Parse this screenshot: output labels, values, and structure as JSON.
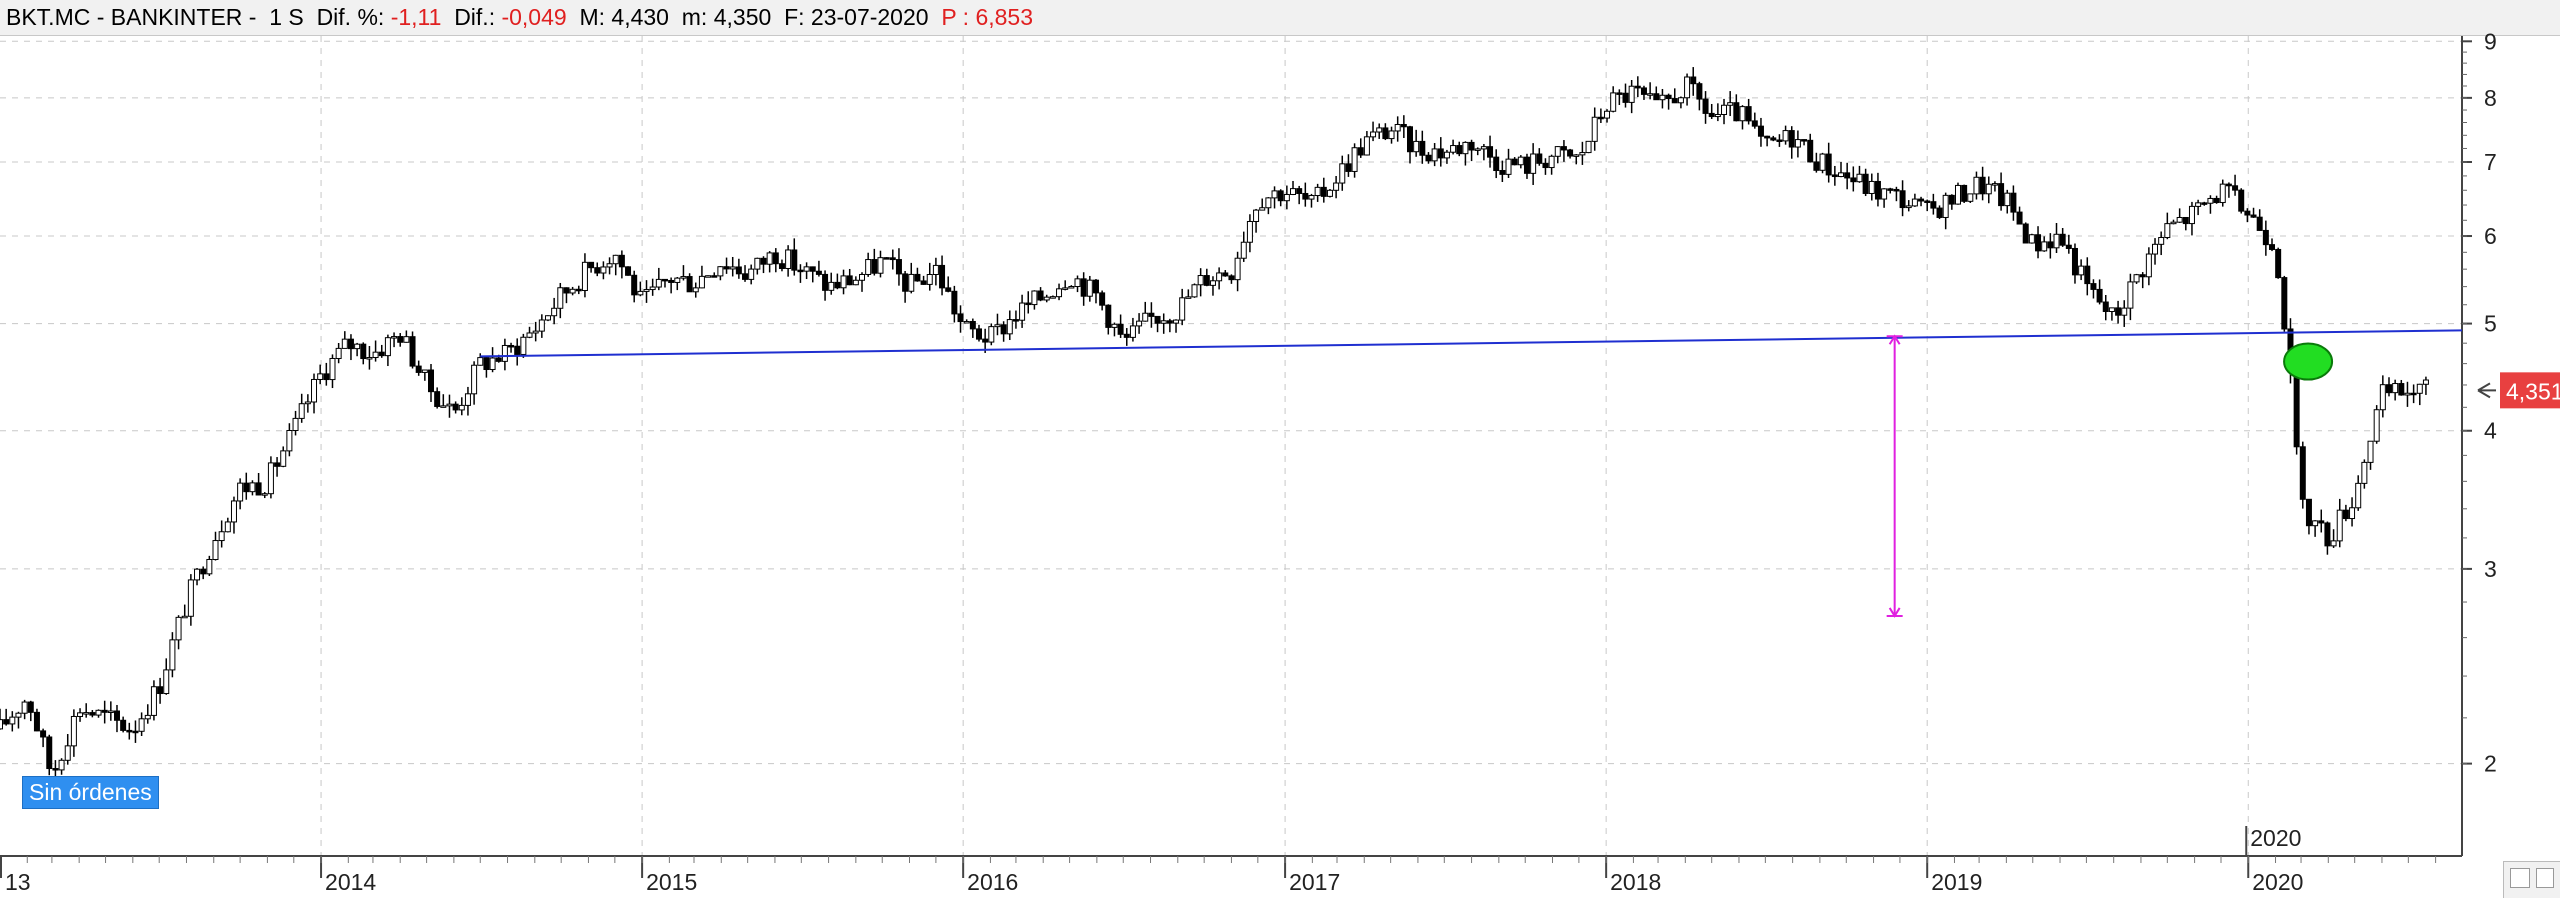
{
  "header": {
    "symbol": "BKT.MC - BANKINTER -",
    "period": "1 S",
    "pct_label": "Dif. %:",
    "pct_value": "-1,11",
    "diff_label": "Dif.:",
    "diff_value": "-0,049",
    "high_label": "M:",
    "high_value": "4,430",
    "low_label": "m:",
    "low_value": "4,350",
    "date_label": "F:",
    "date_value": "23-07-2020",
    "p_label": "P :",
    "p_value": "6,853"
  },
  "orders_badge": "Sin órdenes",
  "price_marker": "4,351",
  "corner_year": "2020",
  "colors": {
    "trendline": "#1f2fd0",
    "measure": "#e020e0",
    "marker": "#22dd22",
    "price_tag": "#e84040",
    "orders_badge": "#2f8ff0",
    "negative_text": "#e02020"
  },
  "chart_data": {
    "type": "candlestick",
    "scale": "log",
    "x_tick_labels": [
      "13",
      "2014",
      "2015",
      "2016",
      "2017",
      "2018",
      "2019",
      "2020"
    ],
    "y_tick_labels": [
      "9",
      "8",
      "7",
      "6",
      "5",
      "4",
      "3",
      "2"
    ],
    "y_ticks": [
      9,
      8,
      7,
      6,
      5,
      4,
      3,
      2
    ],
    "ylim": [
      1.65,
      9.1
    ],
    "xlim": [
      "2013-01-01",
      "2020-08-31"
    ],
    "price_path": [
      [
        "2013-01-01",
        2.15
      ],
      [
        "2013-02-01",
        2.3
      ],
      [
        "2013-03-01",
        1.95
      ],
      [
        "2013-04-01",
        2.25
      ],
      [
        "2013-05-01",
        2.2
      ],
      [
        "2013-06-01",
        2.15
      ],
      [
        "2013-07-01",
        2.35
      ],
      [
        "2013-08-01",
        2.8
      ],
      [
        "2013-09-01",
        3.2
      ],
      [
        "2013-10-01",
        3.55
      ],
      [
        "2013-11-01",
        3.6
      ],
      [
        "2013-12-01",
        4.0
      ],
      [
        "2014-01-01",
        4.5
      ],
      [
        "2014-02-01",
        4.8
      ],
      [
        "2014-03-01",
        4.7
      ],
      [
        "2014-04-01",
        4.9
      ],
      [
        "2014-05-01",
        4.4
      ],
      [
        "2014-06-01",
        4.15
      ],
      [
        "2014-07-01",
        4.6
      ],
      [
        "2014-08-01",
        4.7
      ],
      [
        "2014-09-01",
        4.95
      ],
      [
        "2014-10-01",
        5.3
      ],
      [
        "2014-11-01",
        5.6
      ],
      [
        "2014-12-01",
        5.8
      ],
      [
        "2015-01-01",
        5.2
      ],
      [
        "2015-02-01",
        5.5
      ],
      [
        "2015-03-01",
        5.45
      ],
      [
        "2015-04-01",
        5.7
      ],
      [
        "2015-05-01",
        5.55
      ],
      [
        "2015-06-01",
        5.8
      ],
      [
        "2015-07-01",
        5.6
      ],
      [
        "2015-08-01",
        5.4
      ],
      [
        "2015-09-01",
        5.5
      ],
      [
        "2015-10-01",
        5.7
      ],
      [
        "2015-11-01",
        5.4
      ],
      [
        "2015-12-01",
        5.6
      ],
      [
        "2016-01-01",
        4.95
      ],
      [
        "2016-02-01",
        4.85
      ],
      [
        "2016-03-01",
        5.1
      ],
      [
        "2016-04-01",
        5.3
      ],
      [
        "2016-05-01",
        5.55
      ],
      [
        "2016-06-01",
        5.3
      ],
      [
        "2016-07-01",
        4.8
      ],
      [
        "2016-08-01",
        5.05
      ],
      [
        "2016-09-01",
        5.15
      ],
      [
        "2016-10-01",
        5.5
      ],
      [
        "2016-11-01",
        5.6
      ],
      [
        "2016-12-01",
        6.5
      ],
      [
        "2017-01-01",
        6.6
      ],
      [
        "2017-02-01",
        6.4
      ],
      [
        "2017-03-01",
        6.8
      ],
      [
        "2017-04-01",
        7.3
      ],
      [
        "2017-05-01",
        7.5
      ],
      [
        "2017-06-01",
        7.2
      ],
      [
        "2017-07-01",
        7.15
      ],
      [
        "2017-08-01",
        7.3
      ],
      [
        "2017-09-01",
        7.0
      ],
      [
        "2017-10-01",
        6.95
      ],
      [
        "2017-11-01",
        7.1
      ],
      [
        "2017-12-01",
        7.05
      ],
      [
        "2018-01-01",
        7.9
      ],
      [
        "2018-02-01",
        8.1
      ],
      [
        "2018-03-01",
        7.8
      ],
      [
        "2018-04-01",
        8.2
      ],
      [
        "2018-05-01",
        7.7
      ],
      [
        "2018-06-01",
        7.75
      ],
      [
        "2018-07-01",
        7.2
      ],
      [
        "2018-08-01",
        7.4
      ],
      [
        "2018-09-01",
        7.0
      ],
      [
        "2018-10-01",
        6.8
      ],
      [
        "2018-11-01",
        6.6
      ],
      [
        "2018-12-01",
        6.5
      ],
      [
        "2019-01-01",
        6.3
      ],
      [
        "2019-02-01",
        6.5
      ],
      [
        "2019-03-01",
        6.7
      ],
      [
        "2019-04-01",
        6.45
      ],
      [
        "2019-05-01",
        5.9
      ],
      [
        "2019-06-01",
        6.0
      ],
      [
        "2019-07-01",
        5.4
      ],
      [
        "2019-08-01",
        5.05
      ],
      [
        "2019-09-01",
        5.6
      ],
      [
        "2019-10-01",
        6.1
      ],
      [
        "2019-11-01",
        6.3
      ],
      [
        "2019-12-01",
        6.6
      ],
      [
        "2020-01-01",
        6.3
      ],
      [
        "2020-02-01",
        5.9
      ],
      [
        "2020-03-01",
        3.4
      ],
      [
        "2020-04-01",
        3.2
      ],
      [
        "2020-05-01",
        3.5
      ],
      [
        "2020-06-01",
        4.3
      ],
      [
        "2020-07-01",
        4.35
      ],
      [
        "2020-07-23",
        4.351
      ]
    ],
    "trendline": [
      [
        "2014-07-01",
        4.67
      ],
      [
        "2020-08-31",
        4.93
      ]
    ],
    "measure_line": {
      "x": "2018-11-25",
      "y": [
        4.87,
        2.72
      ]
    },
    "marker": {
      "x": "2020-03-09",
      "y": 4.62
    },
    "last_price": 4.351
  }
}
